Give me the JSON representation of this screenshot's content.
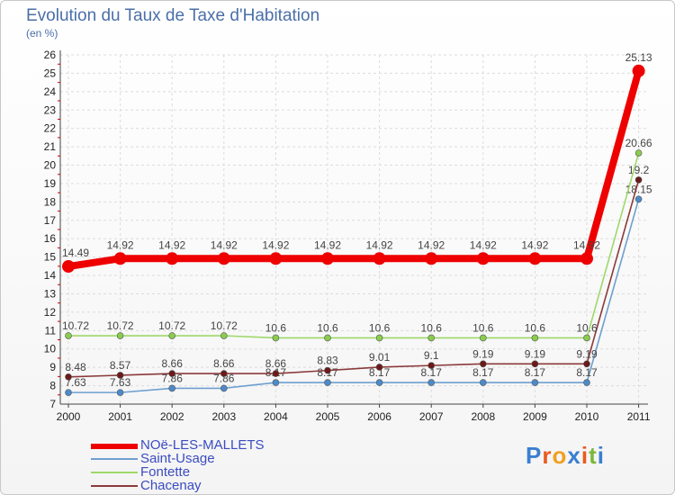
{
  "chart_data": {
    "type": "line",
    "title": "Evolution du Taux de Taxe d'Habitation",
    "ylabel": "(en %)",
    "xlabel": "",
    "categories": [
      "2000",
      "2001",
      "2002",
      "2003",
      "2004",
      "2005",
      "2006",
      "2007",
      "2008",
      "2009",
      "2010",
      "2011"
    ],
    "ylim": [
      7,
      26
    ],
    "yticks": [
      7,
      8,
      9,
      10,
      11,
      12,
      13,
      14,
      15,
      16,
      17,
      18,
      19,
      20,
      21,
      22,
      23,
      24,
      25,
      26
    ],
    "series": [
      {
        "name": "Saint-Usage",
        "color": "#6e9fcf",
        "marker_color": "#4d8ac9",
        "values": [
          7.63,
          7.63,
          7.86,
          7.86,
          8.17,
          8.17,
          8.17,
          8.17,
          8.17,
          8.17,
          8.17,
          18.15
        ],
        "labels": [
          "7.63",
          "7.63",
          "7.86",
          "7.86",
          "8.17",
          "8.17",
          "8.17",
          "8.17",
          "8.17",
          "8.17",
          "8.17",
          "18.15"
        ]
      },
      {
        "name": "Chacenay",
        "color": "#8b3a3a",
        "marker_color": "#6b1a1a",
        "values": [
          8.48,
          8.57,
          8.66,
          8.66,
          8.66,
          8.83,
          9.01,
          9.1,
          9.19,
          9.19,
          9.19,
          19.2
        ],
        "labels": [
          "8.48",
          "8.57",
          "8.66",
          "8.66",
          "8.66",
          "8.83",
          "9.01",
          "9.1",
          "9.19",
          "9.19",
          "9.19",
          "19.2"
        ]
      },
      {
        "name": "Fontette",
        "color": "#9ed86a",
        "marker_color": "#8acc4e",
        "values": [
          10.72,
          10.72,
          10.72,
          10.72,
          10.6,
          10.6,
          10.6,
          10.6,
          10.6,
          10.6,
          10.6,
          20.66
        ],
        "labels": [
          "10.72",
          "10.72",
          "10.72",
          "10.72",
          "10.6",
          "10.6",
          "10.6",
          "10.6",
          "10.6",
          "10.6",
          "10.6",
          "20.66"
        ]
      },
      {
        "name": "NOë-LES-MALLETS",
        "color": "#ee0000",
        "marker_color": "#ee0000",
        "values": [
          14.49,
          14.92,
          14.92,
          14.92,
          14.92,
          14.92,
          14.92,
          14.92,
          14.92,
          14.92,
          14.92,
          25.13
        ],
        "labels": [
          "14.49",
          "14.92",
          "14.92",
          "14.92",
          "14.92",
          "14.92",
          "14.92",
          "14.92",
          "14.92",
          "14.92",
          "14.92",
          "25.13"
        ]
      }
    ],
    "legend": [
      "NOë-LES-MALLETS",
      "Saint-Usage",
      "Fontette",
      "Chacenay"
    ],
    "legend_position": "bottom-left"
  },
  "logo": {
    "text": "Proxiti"
  }
}
